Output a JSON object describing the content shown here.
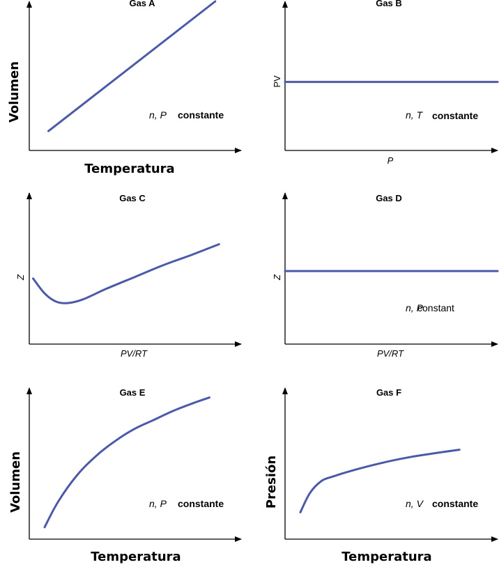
{
  "chart_data": [
    {
      "id": "A",
      "type": "line",
      "title": "Gas A",
      "xlabel": "Temperatura",
      "ylabel": "Volumen",
      "condition_vars": "n, P",
      "condition_word": "constante",
      "shape": "linear-increasing",
      "points": [
        [
          0.1,
          0.13
        ],
        [
          0.97,
          1.0
        ]
      ]
    },
    {
      "id": "B",
      "type": "line",
      "title": "Gas B",
      "xlabel": "P",
      "ylabel": "PV",
      "condition_vars": "n, T",
      "condition_word": "constante",
      "shape": "constant",
      "points": [
        [
          0.0,
          0.46
        ],
        [
          1.0,
          0.46
        ]
      ]
    },
    {
      "id": "C",
      "type": "line",
      "title": "Gas C",
      "xlabel": "PV/RT",
      "ylabel": "Z",
      "shape": "dip-then-rise",
      "points": [
        [
          0.02,
          0.44
        ],
        [
          0.08,
          0.34
        ],
        [
          0.14,
          0.285
        ],
        [
          0.2,
          0.275
        ],
        [
          0.28,
          0.3
        ],
        [
          0.4,
          0.37
        ],
        [
          0.55,
          0.45
        ],
        [
          0.7,
          0.53
        ],
        [
          0.85,
          0.6
        ],
        [
          0.99,
          0.67
        ]
      ]
    },
    {
      "id": "D",
      "type": "line",
      "title": "Gas D",
      "xlabel": "PV/RT",
      "ylabel": "Z",
      "condition_vars": "n, P",
      "condition_word": "constant",
      "shape": "constant",
      "points": [
        [
          0.0,
          0.49
        ],
        [
          1.0,
          0.49
        ]
      ]
    },
    {
      "id": "E",
      "type": "line",
      "title": "Gas E",
      "xlabel": "Temperatura",
      "ylabel": "Volumen",
      "condition_vars": "n, P",
      "condition_word": "constante",
      "shape": "concave-increasing",
      "points": [
        [
          0.08,
          0.08
        ],
        [
          0.15,
          0.25
        ],
        [
          0.25,
          0.43
        ],
        [
          0.35,
          0.56
        ],
        [
          0.45,
          0.66
        ],
        [
          0.55,
          0.74
        ],
        [
          0.65,
          0.8
        ],
        [
          0.75,
          0.86
        ],
        [
          0.85,
          0.91
        ],
        [
          0.94,
          0.95
        ]
      ]
    },
    {
      "id": "F",
      "type": "line",
      "title": "Gas F",
      "xlabel": "Temperatura",
      "ylabel": "Presión",
      "condition_vars": "n, V",
      "condition_word": "constante",
      "shape": "sharp-rise-then-slow",
      "points": [
        [
          0.08,
          0.18
        ],
        [
          0.13,
          0.31
        ],
        [
          0.19,
          0.39
        ],
        [
          0.25,
          0.42
        ],
        [
          0.35,
          0.46
        ],
        [
          0.5,
          0.51
        ],
        [
          0.65,
          0.55
        ],
        [
          0.8,
          0.58
        ],
        [
          0.91,
          0.6
        ]
      ]
    }
  ]
}
